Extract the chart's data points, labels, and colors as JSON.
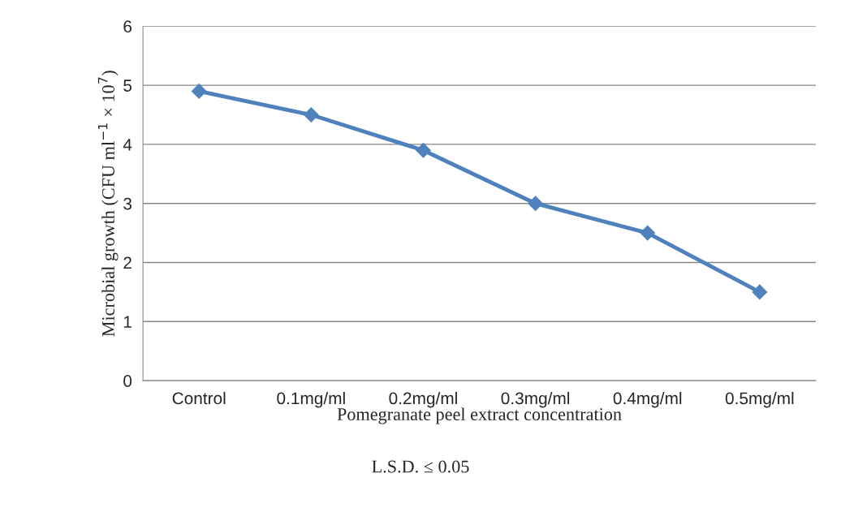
{
  "chart_data": {
    "type": "line",
    "xlabel": "Pomegranate peel extract concentration",
    "ylabel": "Microbial growth (CFU ml$^{−1}$ × 10$^{7}$)",
    "categories": [
      "Control",
      "0.1mg/ml",
      "0.2mg/ml",
      "0.3mg/ml",
      "0.4mg/ml",
      "0.5mg/ml"
    ],
    "series": [
      {
        "color": "#4f81bd",
        "values": [
          4.9,
          4.5,
          3.9,
          3.0,
          2.5,
          1.5
        ]
      }
    ],
    "ylim": [
      0,
      6
    ],
    "yticks": [
      0,
      1,
      2,
      3,
      4,
      5,
      6
    ],
    "grid": "y",
    "marker": "diamond",
    "line_style": "solid",
    "annotations": [
      "L.S.D. ≤ 0.05"
    ]
  }
}
